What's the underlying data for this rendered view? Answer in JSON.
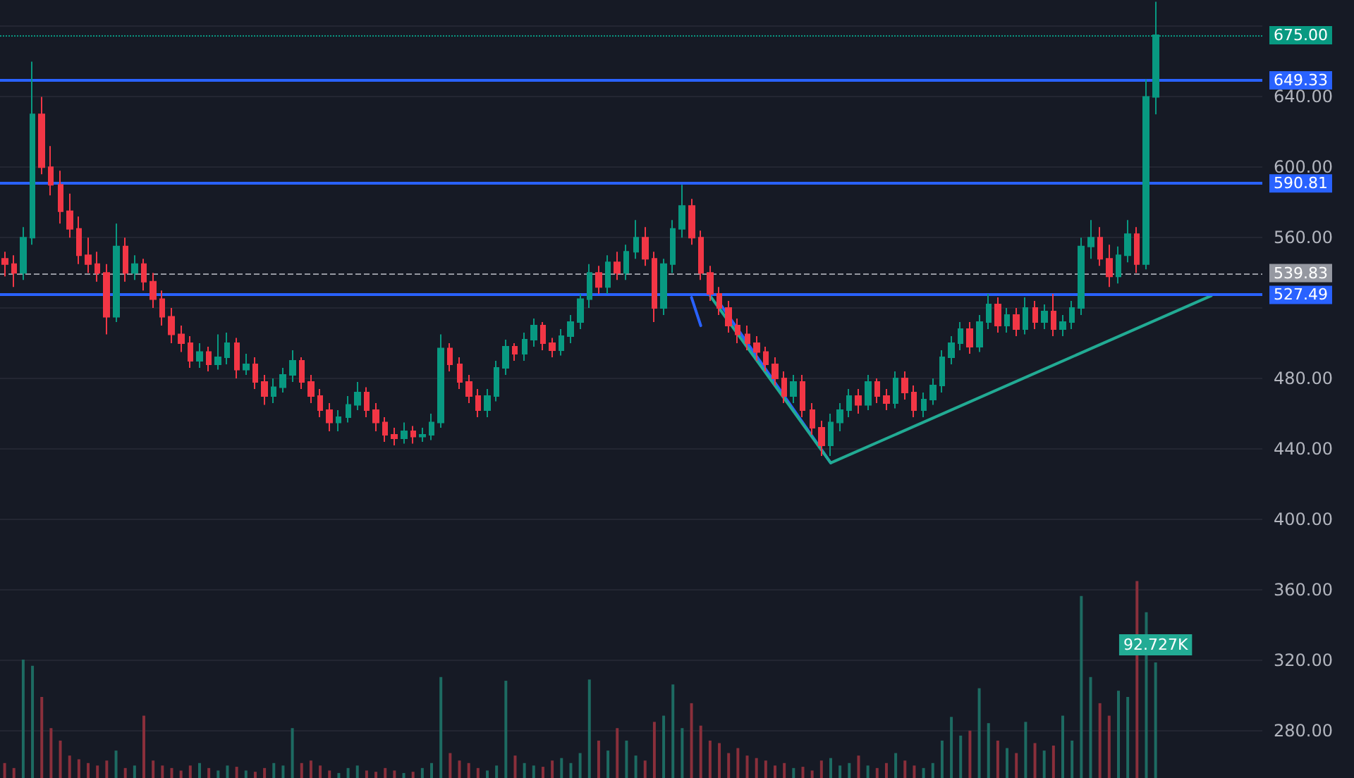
{
  "chart_data": {
    "type": "candlestick",
    "categories": [
      null,
      null,
      null,
      null,
      null,
      null,
      null,
      null,
      null,
      null,
      null,
      null,
      null,
      null,
      null,
      null,
      null,
      null,
      null,
      null,
      null,
      null,
      null,
      null,
      null,
      null,
      null,
      null,
      null,
      null,
      null,
      null,
      null,
      null,
      null,
      null,
      null,
      null,
      null,
      null,
      null,
      null,
      null,
      null,
      null,
      null,
      null,
      null,
      null,
      null,
      null,
      null,
      null,
      null,
      null,
      null,
      null,
      null,
      null,
      null,
      null,
      null,
      null,
      null,
      null,
      null,
      null,
      null,
      null,
      null,
      null,
      null,
      null,
      null,
      null,
      null,
      null,
      null,
      null,
      null,
      null,
      null,
      null,
      null,
      null,
      null,
      null,
      null,
      null,
      null,
      null,
      null,
      null,
      null,
      null,
      null,
      null,
      null,
      null,
      null,
      null,
      null,
      null,
      null,
      null,
      null,
      null,
      null,
      null,
      null,
      null,
      null,
      null,
      null,
      null,
      null,
      null,
      null,
      null,
      null,
      null,
      null,
      null,
      null,
      null,
      null,
      null,
      null,
      null,
      null,
      null,
      null,
      null,
      null,
      null,
      null
    ],
    "ylim": [
      253,
      695
    ],
    "yticks": [
      {
        "value": 280,
        "label": "280.00"
      },
      {
        "value": 320,
        "label": "320.00"
      },
      {
        "value": 360,
        "label": "360.00"
      },
      {
        "value": 400,
        "label": "400.00"
      },
      {
        "value": 440,
        "label": "440.00"
      },
      {
        "value": 480,
        "label": "480.00"
      },
      {
        "value": 520,
        "label": null
      },
      {
        "value": 560,
        "label": "560.00"
      },
      {
        "value": 600,
        "label": "600.00"
      },
      {
        "value": 640,
        "label": "640.00"
      },
      {
        "value": 680,
        "label": null
      }
    ],
    "y2lim": [
      0,
      624
    ],
    "grid": "y",
    "tick_labels": "y",
    "series": [
      {
        "colors": [
          "#f23645",
          "#f23645",
          "#089981",
          "#089981",
          "#f23645",
          "#f23645",
          "#f23645",
          "#f23645",
          "#f23645",
          "#f23645",
          "#f23645",
          "#f23645",
          "#089981",
          "#f23645",
          "#089981",
          "#f23645",
          "#f23645",
          "#f23645",
          "#f23645",
          "#f23645",
          "#f23645",
          "#089981",
          "#f23645",
          "#089981",
          "#089981",
          "#f23645",
          "#089981",
          "#f23645",
          "#f23645",
          "#089981",
          "#089981",
          "#089981",
          "#f23645",
          "#f23645",
          "#f23645",
          "#f23645",
          "#089981",
          "#089981",
          "#089981",
          "#f23645",
          "#f23645",
          "#f23645",
          "#f23645",
          "#089981",
          "#f23645",
          "#089981",
          "#089981",
          "#089981",
          "#f23645",
          "#f23645",
          "#f23645",
          "#f23645",
          "#089981",
          "#089981",
          "#089981",
          "#f23645",
          "#089981",
          "#089981",
          "#f23645",
          "#f23645",
          "#089981",
          "#089981",
          "#089981",
          "#089981",
          "#f23645",
          "#089981",
          "#f23645",
          "#089981",
          "#089981",
          "#f23645",
          "#f23645",
          "#089981",
          "#089981",
          "#089981",
          "#f23645",
          "#f23645",
          "#f23645",
          "#f23645",
          "#f23645",
          "#f23645",
          "#f23645",
          "#f23645",
          "#f23645",
          "#f23645",
          "#f23645",
          "#089981",
          "#f23645",
          "#f23645",
          "#f23645",
          "#089981",
          "#089981",
          "#089981",
          "#f23645",
          "#089981",
          "#f23645",
          "#f23645",
          "#089981",
          "#f23645",
          "#f23645",
          "#089981",
          "#089981",
          "#089981",
          "#089981",
          "#089981",
          "#f23645",
          "#089981",
          "#089981",
          "#f23645",
          "#089981",
          "#f23645",
          "#089981",
          "#f23645",
          "#089981",
          "#f23645",
          "#089981",
          "#089981",
          "#089981",
          "#089981",
          "#f23645",
          "#f23645",
          "#089981",
          "#089981",
          "#f23645",
          "#089981",
          "#089981",
          null,
          null,
          null,
          null,
          null,
          null,
          null,
          null,
          null,
          null,
          null
        ],
        "ohlc": [
          [
            548,
            552,
            538,
            545
          ],
          [
            545,
            550,
            532,
            540
          ],
          [
            540,
            566,
            536,
            560
          ],
          [
            560,
            660,
            556,
            630
          ],
          [
            630,
            640,
            596,
            600
          ],
          [
            600,
            612,
            584,
            590
          ],
          [
            590,
            598,
            568,
            575
          ],
          [
            575,
            585,
            560,
            565
          ],
          [
            565,
            572,
            545,
            550
          ],
          [
            550,
            560,
            540,
            545
          ],
          [
            545,
            552,
            535,
            540
          ],
          [
            540,
            545,
            505,
            515
          ],
          [
            515,
            568,
            512,
            555
          ],
          [
            555,
            560,
            535,
            540
          ],
          [
            540,
            550,
            536,
            545
          ],
          [
            545,
            548,
            530,
            535
          ],
          [
            535,
            540,
            520,
            525
          ],
          [
            525,
            530,
            510,
            515
          ],
          [
            515,
            520,
            500,
            505
          ],
          [
            505,
            510,
            495,
            500
          ],
          [
            500,
            504,
            486,
            490
          ],
          [
            490,
            500,
            486,
            495
          ],
          [
            495,
            498,
            484,
            488
          ],
          [
            488,
            505,
            485,
            492
          ],
          [
            492,
            506,
            488,
            500
          ],
          [
            500,
            503,
            480,
            485
          ],
          [
            485,
            494,
            482,
            488
          ],
          [
            488,
            492,
            474,
            478
          ],
          [
            478,
            482,
            465,
            470
          ],
          [
            470,
            480,
            466,
            475
          ],
          [
            475,
            486,
            472,
            482
          ],
          [
            482,
            496,
            478,
            490
          ],
          [
            490,
            492,
            474,
            478
          ],
          [
            478,
            482,
            466,
            470
          ],
          [
            470,
            474,
            458,
            462
          ],
          [
            462,
            466,
            450,
            455
          ],
          [
            455,
            462,
            450,
            458
          ],
          [
            458,
            470,
            455,
            465
          ],
          [
            465,
            478,
            462,
            472
          ],
          [
            472,
            475,
            458,
            462
          ],
          [
            462,
            466,
            450,
            455
          ],
          [
            455,
            458,
            444,
            448
          ],
          [
            448,
            452,
            442,
            446
          ],
          [
            446,
            455,
            443,
            450
          ],
          [
            450,
            453,
            443,
            447
          ],
          [
            447,
            452,
            444,
            448
          ],
          [
            448,
            460,
            445,
            455
          ],
          [
            455,
            505,
            452,
            497
          ],
          [
            497,
            500,
            484,
            488
          ],
          [
            488,
            492,
            474,
            478
          ],
          [
            478,
            482,
            466,
            470
          ],
          [
            470,
            474,
            458,
            462
          ],
          [
            462,
            474,
            458,
            470
          ],
          [
            470,
            490,
            467,
            486
          ],
          [
            486,
            502,
            482,
            498
          ],
          [
            498,
            500,
            490,
            494
          ],
          [
            494,
            506,
            490,
            502
          ],
          [
            502,
            514,
            498,
            510
          ],
          [
            510,
            512,
            496,
            500
          ],
          [
            500,
            503,
            492,
            496
          ],
          [
            496,
            508,
            493,
            504
          ],
          [
            504,
            516,
            500,
            512
          ],
          [
            512,
            528,
            508,
            525
          ],
          [
            525,
            545,
            520,
            540
          ],
          [
            540,
            544,
            528,
            532
          ],
          [
            532,
            550,
            528,
            546
          ],
          [
            546,
            552,
            536,
            540
          ],
          [
            540,
            556,
            536,
            552
          ],
          [
            552,
            570,
            548,
            560
          ],
          [
            560,
            566,
            544,
            548
          ],
          [
            548,
            552,
            512,
            520
          ],
          [
            520,
            548,
            516,
            545
          ],
          [
            545,
            570,
            540,
            565
          ],
          [
            565,
            590,
            560,
            578
          ],
          [
            578,
            582,
            556,
            560
          ],
          [
            560,
            564,
            536,
            540
          ],
          [
            540,
            544,
            524,
            528
          ],
          [
            528,
            532,
            516,
            520
          ],
          [
            520,
            524,
            506,
            510
          ],
          [
            510,
            514,
            500,
            505
          ],
          [
            505,
            510,
            496,
            500
          ],
          [
            500,
            504,
            490,
            495
          ],
          [
            495,
            498,
            484,
            488
          ],
          [
            488,
            492,
            476,
            480
          ],
          [
            480,
            484,
            466,
            470
          ],
          [
            470,
            482,
            466,
            478
          ],
          [
            478,
            482,
            458,
            462
          ],
          [
            462,
            466,
            448,
            452
          ],
          [
            452,
            456,
            436,
            442
          ],
          [
            442,
            460,
            436,
            455
          ],
          [
            455,
            466,
            450,
            462
          ],
          [
            462,
            474,
            458,
            470
          ],
          [
            470,
            474,
            460,
            465
          ],
          [
            465,
            482,
            462,
            478
          ],
          [
            478,
            480,
            466,
            470
          ],
          [
            470,
            474,
            462,
            466
          ],
          [
            466,
            484,
            463,
            480
          ],
          [
            480,
            484,
            468,
            472
          ],
          [
            472,
            476,
            458,
            462
          ],
          [
            462,
            472,
            458,
            468
          ],
          [
            468,
            480,
            465,
            476
          ],
          [
            476,
            496,
            472,
            492
          ],
          [
            492,
            504,
            488,
            500
          ],
          [
            500,
            512,
            496,
            508
          ],
          [
            508,
            512,
            494,
            498
          ],
          [
            498,
            516,
            495,
            512
          ],
          [
            512,
            528,
            508,
            522
          ],
          [
            522,
            526,
            506,
            510
          ],
          [
            510,
            520,
            506,
            516
          ],
          [
            516,
            520,
            504,
            508
          ],
          [
            508,
            526,
            505,
            520
          ],
          [
            520,
            524,
            508,
            512
          ],
          [
            512,
            522,
            508,
            518
          ],
          [
            518,
            528,
            504,
            508
          ],
          [
            508,
            516,
            504,
            512
          ],
          [
            512,
            524,
            508,
            520
          ],
          [
            520,
            560,
            516,
            555
          ],
          [
            555,
            570,
            548,
            560
          ],
          [
            560,
            566,
            544,
            548
          ],
          [
            548,
            556,
            532,
            538
          ],
          [
            538,
            555,
            534,
            550
          ],
          [
            550,
            570,
            546,
            562
          ],
          [
            562,
            566,
            540,
            545
          ],
          [
            545,
            650,
            542,
            640
          ],
          [
            640,
            694,
            630,
            675
          ],
          null,
          null,
          null,
          null,
          null,
          null,
          null,
          null,
          null,
          null,
          null
        ]
      },
      {
        "type": "bar",
        "axis": "y2",
        "colors": [
          "#8a2f3b",
          "#8a2f3b",
          "#1d6b62",
          "#1d6b62",
          "#8a2f3b",
          "#8a2f3b",
          "#8a2f3b",
          "#8a2f3b",
          "#8a2f3b",
          "#8a2f3b",
          "#8a2f3b",
          "#8a2f3b",
          "#1d6b62",
          "#8a2f3b",
          "#1d6b62",
          "#8a2f3b",
          "#8a2f3b",
          "#8a2f3b",
          "#8a2f3b",
          "#8a2f3b",
          "#8a2f3b",
          "#1d6b62",
          "#8a2f3b",
          "#1d6b62",
          "#1d6b62",
          "#8a2f3b",
          "#1d6b62",
          "#8a2f3b",
          "#8a2f3b",
          "#1d6b62",
          "#1d6b62",
          "#1d6b62",
          "#8a2f3b",
          "#8a2f3b",
          "#8a2f3b",
          "#8a2f3b",
          "#1d6b62",
          "#1d6b62",
          "#1d6b62",
          "#8a2f3b",
          "#8a2f3b",
          "#8a2f3b",
          "#8a2f3b",
          "#1d6b62",
          "#8a2f3b",
          "#1d6b62",
          "#1d6b62",
          "#1d6b62",
          "#8a2f3b",
          "#8a2f3b",
          "#8a2f3b",
          "#8a2f3b",
          "#1d6b62",
          "#1d6b62",
          "#1d6b62",
          "#8a2f3b",
          "#1d6b62",
          "#1d6b62",
          "#8a2f3b",
          "#8a2f3b",
          "#1d6b62",
          "#1d6b62",
          "#1d6b62",
          "#1d6b62",
          "#8a2f3b",
          "#1d6b62",
          "#8a2f3b",
          "#1d6b62",
          "#1d6b62",
          "#8a2f3b",
          "#8a2f3b",
          "#1d6b62",
          "#1d6b62",
          "#1d6b62",
          "#8a2f3b",
          "#8a2f3b",
          "#8a2f3b",
          "#8a2f3b",
          "#8a2f3b",
          "#8a2f3b",
          "#8a2f3b",
          "#8a2f3b",
          "#8a2f3b",
          "#8a2f3b",
          "#8a2f3b",
          "#1d6b62",
          "#8a2f3b",
          "#8a2f3b",
          "#8a2f3b",
          "#1d6b62",
          "#1d6b62",
          "#1d6b62",
          "#8a2f3b",
          "#1d6b62",
          "#8a2f3b",
          "#8a2f3b",
          "#1d6b62",
          "#8a2f3b",
          "#8a2f3b",
          "#1d6b62",
          "#1d6b62",
          "#1d6b62",
          "#1d6b62",
          "#1d6b62",
          "#8a2f3b",
          "#1d6b62",
          "#1d6b62",
          "#8a2f3b",
          "#1d6b62",
          "#8a2f3b",
          "#1d6b62",
          "#8a2f3b",
          "#1d6b62",
          "#8a2f3b",
          "#1d6b62",
          "#1d6b62",
          "#1d6b62",
          "#1d6b62",
          "#8a2f3b",
          "#8a2f3b",
          "#1d6b62",
          "#1d6b62",
          "#8a2f3b",
          "#1d6b62",
          "#1d6b62",
          null,
          null,
          null,
          null,
          null,
          null,
          null,
          null,
          null,
          null,
          null
        ],
        "values": [
          12,
          8,
          95,
          90,
          65,
          40,
          30,
          18,
          15,
          12,
          10,
          14,
          22,
          8,
          10,
          50,
          14,
          10,
          8,
          6,
          10,
          12,
          8,
          6,
          10,
          9,
          6,
          5,
          8,
          12,
          10,
          40,
          12,
          14,
          10,
          6,
          4,
          8,
          10,
          6,
          5,
          8,
          6,
          4,
          5,
          8,
          12,
          81,
          20,
          14,
          12,
          8,
          6,
          10,
          78,
          18,
          12,
          10,
          9,
          14,
          16,
          12,
          20,
          79,
          30,
          22,
          40,
          30,
          18,
          14,
          45,
          50,
          75,
          40,
          60,
          42,
          30,
          28,
          20,
          24,
          18,
          16,
          14,
          10,
          12,
          8,
          9,
          6,
          14,
          16,
          10,
          12,
          18,
          10,
          8,
          12,
          20,
          14,
          10,
          8,
          12,
          30,
          49,
          34,
          38,
          72,
          44,
          30,
          24,
          20,
          45,
          28,
          22,
          26,
          50,
          30,
          146,
          81,
          60,
          50,
          70,
          65,
          158,
          133,
          92.727,
          null,
          null,
          null,
          null,
          null,
          null,
          null,
          null,
          null,
          null,
          null
        ],
        "value_labels": [
          null,
          null,
          null,
          null,
          null,
          null,
          null,
          null,
          null,
          null,
          null,
          null,
          null,
          null,
          null,
          null,
          null,
          null,
          null,
          null,
          null,
          null,
          null,
          null,
          null,
          null,
          null,
          null,
          null,
          null,
          null,
          null,
          null,
          null,
          null,
          null,
          null,
          null,
          null,
          null,
          null,
          null,
          null,
          null,
          null,
          null,
          null,
          null,
          null,
          null,
          null,
          null,
          null,
          null,
          null,
          null,
          null,
          null,
          null,
          null,
          null,
          null,
          null,
          null,
          null,
          null,
          null,
          null,
          null,
          null,
          null,
          null,
          null,
          null,
          null,
          null,
          null,
          null,
          null,
          null,
          null,
          null,
          null,
          null,
          null,
          null,
          null,
          null,
          null,
          null,
          null,
          null,
          null,
          null,
          null,
          null,
          null,
          null,
          null,
          null,
          null,
          null,
          null,
          null,
          null,
          null,
          null,
          null,
          null,
          null,
          null,
          null,
          null,
          null,
          null,
          null,
          null,
          null,
          null,
          null,
          null,
          null,
          null,
          null,
          "92.727K",
          null,
          null,
          null,
          null,
          null,
          null,
          null,
          null,
          null,
          null,
          null
        ]
      },
      {
        "type": "line",
        "color": "#2962ff",
        "values": [
          null,
          null,
          null,
          null,
          null,
          null,
          null,
          null,
          null,
          null,
          null,
          null,
          null,
          null,
          null,
          null,
          null,
          null,
          null,
          null,
          null,
          null,
          null,
          null,
          null,
          null,
          null,
          null,
          null,
          null,
          null,
          null,
          null,
          null,
          null,
          null,
          null,
          null,
          null,
          null,
          null,
          null,
          null,
          null,
          null,
          null,
          null,
          null,
          null,
          null,
          null,
          null,
          null,
          null,
          null,
          null,
          null,
          null,
          null,
          null,
          null,
          null,
          null,
          null,
          null,
          null,
          null,
          null,
          null,
          null,
          null,
          null,
          null,
          null,
          526,
          510,
          null,
          null,
          null,
          null,
          null,
          null,
          null,
          null,
          null,
          null,
          null,
          null,
          null,
          null,
          null,
          null,
          null,
          null,
          null,
          null,
          null,
          null,
          null,
          null,
          null,
          null,
          null,
          null,
          null,
          null,
          null,
          null,
          null,
          null,
          null,
          null,
          null,
          null,
          null,
          null,
          null,
          null,
          null,
          null,
          null,
          null,
          null,
          null,
          null,
          null,
          null,
          null,
          null,
          null,
          null,
          null,
          null,
          null,
          null,
          null
        ]
      },
      {
        "type": "line",
        "color": "#2962ff",
        "values": [
          null,
          null,
          null,
          null,
          null,
          null,
          null,
          null,
          null,
          null,
          null,
          null,
          null,
          null,
          null,
          null,
          null,
          null,
          null,
          null,
          null,
          null,
          null,
          null,
          null,
          null,
          null,
          null,
          null,
          null,
          null,
          null,
          null,
          null,
          null,
          null,
          null,
          null,
          null,
          null,
          null,
          null,
          null,
          null,
          null,
          null,
          null,
          null,
          null,
          null,
          null,
          null,
          null,
          null,
          null,
          null,
          null,
          null,
          null,
          null,
          null,
          null,
          null,
          null,
          null,
          null,
          null,
          null,
          null,
          null,
          null,
          null,
          null,
          null,
          null,
          null,
          null,
          523,
          null,
          null,
          null,
          null,
          null,
          null,
          null,
          null,
          null,
          null,
          null,
          432,
          null,
          null,
          null,
          null,
          null,
          null,
          null,
          null,
          null,
          null,
          null,
          null,
          null,
          null,
          null,
          null,
          null,
          null,
          null,
          null,
          null,
          null,
          null,
          null,
          null,
          null,
          null,
          null,
          null,
          null,
          null,
          null,
          null,
          null,
          null,
          null,
          null,
          null,
          null,
          null,
          null,
          null,
          null,
          null,
          null,
          null
        ]
      },
      {
        "type": "line",
        "color": "#22ab94",
        "values": [
          null,
          null,
          null,
          null,
          null,
          null,
          null,
          null,
          null,
          null,
          null,
          null,
          null,
          null,
          null,
          null,
          null,
          null,
          null,
          null,
          null,
          null,
          null,
          null,
          null,
          null,
          null,
          null,
          null,
          null,
          null,
          null,
          null,
          null,
          null,
          null,
          null,
          null,
          null,
          null,
          null,
          null,
          null,
          null,
          null,
          null,
          null,
          null,
          null,
          null,
          null,
          null,
          null,
          null,
          null,
          null,
          null,
          null,
          null,
          null,
          null,
          null,
          null,
          null,
          null,
          null,
          null,
          null,
          null,
          null,
          null,
          null,
          null,
          null,
          null,
          null,
          527,
          null,
          null,
          null,
          null,
          null,
          null,
          null,
          null,
          null,
          null,
          null,
          null,
          432,
          null,
          null,
          null,
          null,
          null,
          null,
          null,
          null,
          null,
          null,
          null,
          null,
          null,
          null,
          null,
          null,
          null,
          null,
          null,
          null,
          null,
          null,
          null,
          null,
          null,
          null,
          null,
          null,
          null,
          null,
          null,
          null,
          null,
          null,
          null,
          null,
          null,
          null,
          null,
          null,
          527,
          null,
          null,
          null,
          null,
          null
        ]
      }
    ],
    "ref_lines": [
      {
        "axis": "y",
        "value": 675,
        "label": "675.00",
        "color": "#089981",
        "line_style": "dotted"
      },
      {
        "axis": "y",
        "value": 649.33,
        "label": "649.33",
        "color": "#2962ff",
        "line_style": "solid"
      },
      {
        "axis": "y",
        "value": 590.81,
        "label": "590.81",
        "color": "#2962ff",
        "line_style": "solid"
      },
      {
        "axis": "y",
        "value": 539.83,
        "label": "539.83",
        "color": "#9598a1",
        "line_style": "dashed"
      },
      {
        "axis": "y",
        "value": 527.49,
        "label": "527.49",
        "color": "#2962ff",
        "line_style": "solid"
      }
    ]
  }
}
